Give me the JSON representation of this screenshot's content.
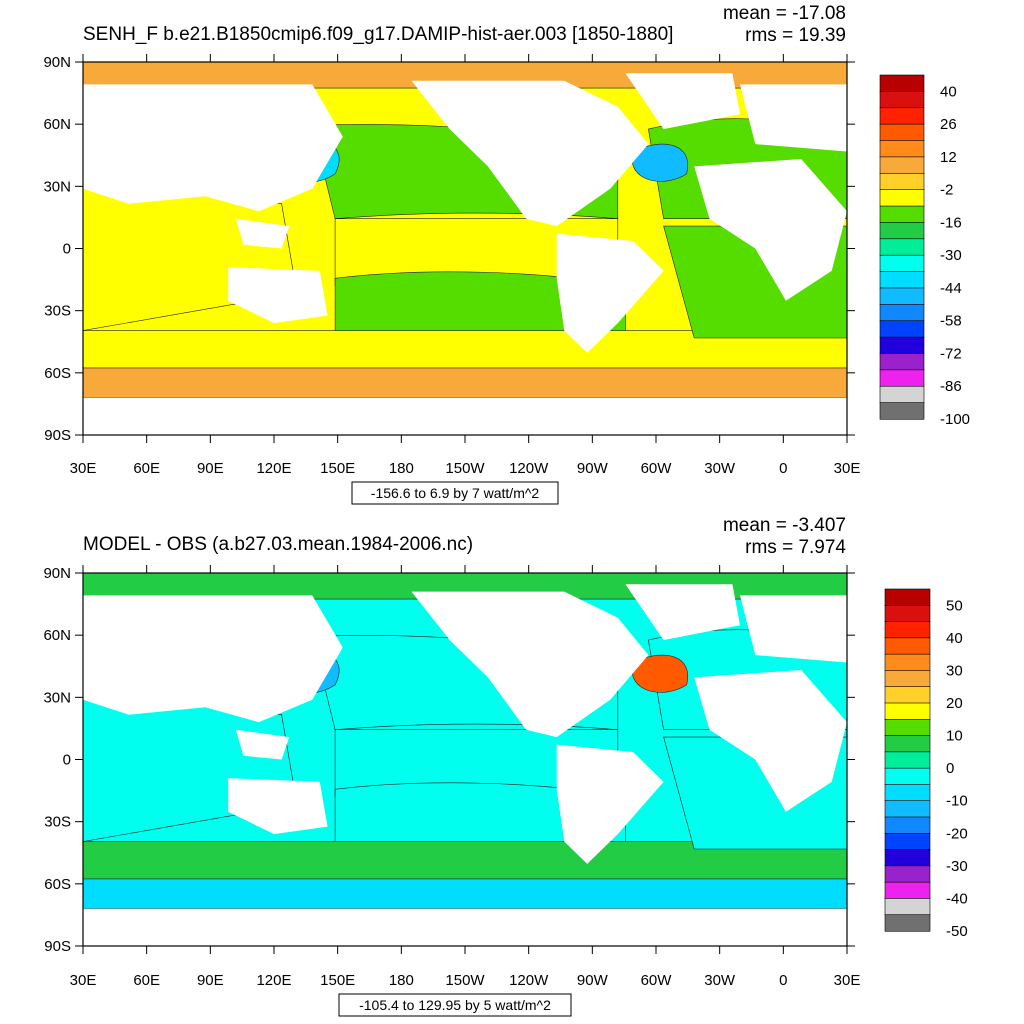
{
  "map_panels": [
    {
      "title": "SENH_F b.e21.B1850cmip6.f09_g17.DAMIP-hist-aer.003 [1850-1880]",
      "mean_label": "mean = -17.08",
      "rms_label": "rms = 19.39",
      "range_label": "-156.6 to 6.9 by 7 watt/m^2",
      "lon_ticks": [
        "30E",
        "60E",
        "90E",
        "120E",
        "150E",
        "180",
        "150W",
        "120W",
        "90W",
        "60W",
        "30W",
        "0",
        "30E"
      ],
      "lat_ticks": [
        "90N",
        "60N",
        "30N",
        "0",
        "30S",
        "60S",
        "90S"
      ],
      "colorbar_labels": [
        "40",
        "26",
        "12",
        "-2",
        "-16",
        "-30",
        "-44",
        "-58",
        "-72",
        "-86",
        "-100"
      ],
      "colorbar_colors": [
        "#b80000",
        "#d81010",
        "#ff2200",
        "#ff5a00",
        "#ff8c1a",
        "#f7a93a",
        "#ffd02a",
        "#ffff00",
        "#55dd00",
        "#22cc44",
        "#00ee99",
        "#00ffee",
        "#00ddff",
        "#11bbff",
        "#1188ff",
        "#0044ff",
        "#2200dd",
        "#9922cc",
        "#ee22ee",
        "#d4d4d4",
        "#707070"
      ],
      "ocean_regions": [
        {
          "name": "arctic",
          "color": "#f7a93a"
        },
        {
          "name": "north-pacific",
          "color": "#55dd00"
        },
        {
          "name": "kuroshio",
          "color": "#00ddff"
        },
        {
          "name": "equatorial-pacific",
          "color": "#ffff00"
        },
        {
          "name": "south-pacific",
          "color": "#55dd00"
        },
        {
          "name": "southern-ocean",
          "color": "#ffff00"
        },
        {
          "name": "antarctic-band",
          "color": "#f7a93a"
        },
        {
          "name": "north-atlantic",
          "color": "#55dd00"
        },
        {
          "name": "gulf-stream",
          "color": "#11bbff"
        },
        {
          "name": "south-atlantic",
          "color": "#55dd00"
        },
        {
          "name": "indian-ocean",
          "color": "#ffff00"
        }
      ]
    },
    {
      "title": "MODEL - OBS (a.b27.03.mean.1984-2006.nc)",
      "mean_label": "mean = -3.407",
      "rms_label": "rms = 7.974",
      "range_label": "-105.4 to 129.95 by 5 watt/m^2",
      "lon_ticks": [
        "30E",
        "60E",
        "90E",
        "120E",
        "150E",
        "180",
        "150W",
        "120W",
        "90W",
        "60W",
        "30W",
        "0",
        "30E"
      ],
      "lat_ticks": [
        "90N",
        "60N",
        "30N",
        "0",
        "30S",
        "60S",
        "90S"
      ],
      "colorbar_labels": [
        "50",
        "40",
        "30",
        "20",
        "10",
        "0",
        "-10",
        "-20",
        "-30",
        "-40",
        "-50"
      ],
      "colorbar_colors": [
        "#b80000",
        "#d81010",
        "#ff2200",
        "#ff5a00",
        "#ff8c1a",
        "#f7a93a",
        "#ffd02a",
        "#ffff00",
        "#55dd00",
        "#22cc44",
        "#00ee99",
        "#00ffee",
        "#00ddff",
        "#11bbff",
        "#1188ff",
        "#0044ff",
        "#2200dd",
        "#9922cc",
        "#ee22ee",
        "#d4d4d4",
        "#707070"
      ],
      "ocean_regions": [
        {
          "name": "arctic",
          "color": "#22cc44"
        },
        {
          "name": "north-pacific",
          "color": "#00ffee"
        },
        {
          "name": "kuroshio",
          "color": "#11bbff"
        },
        {
          "name": "equatorial-pacific",
          "color": "#00ffee"
        },
        {
          "name": "south-pacific",
          "color": "#00ffee"
        },
        {
          "name": "southern-ocean",
          "color": "#22cc44"
        },
        {
          "name": "antarctic-band",
          "color": "#00ddff"
        },
        {
          "name": "north-atlantic",
          "color": "#00ffee"
        },
        {
          "name": "gulf-stream",
          "color": "#ff5a00"
        },
        {
          "name": "south-atlantic",
          "color": "#00ffee"
        },
        {
          "name": "indian-ocean",
          "color": "#00ffee"
        }
      ]
    }
  ]
}
